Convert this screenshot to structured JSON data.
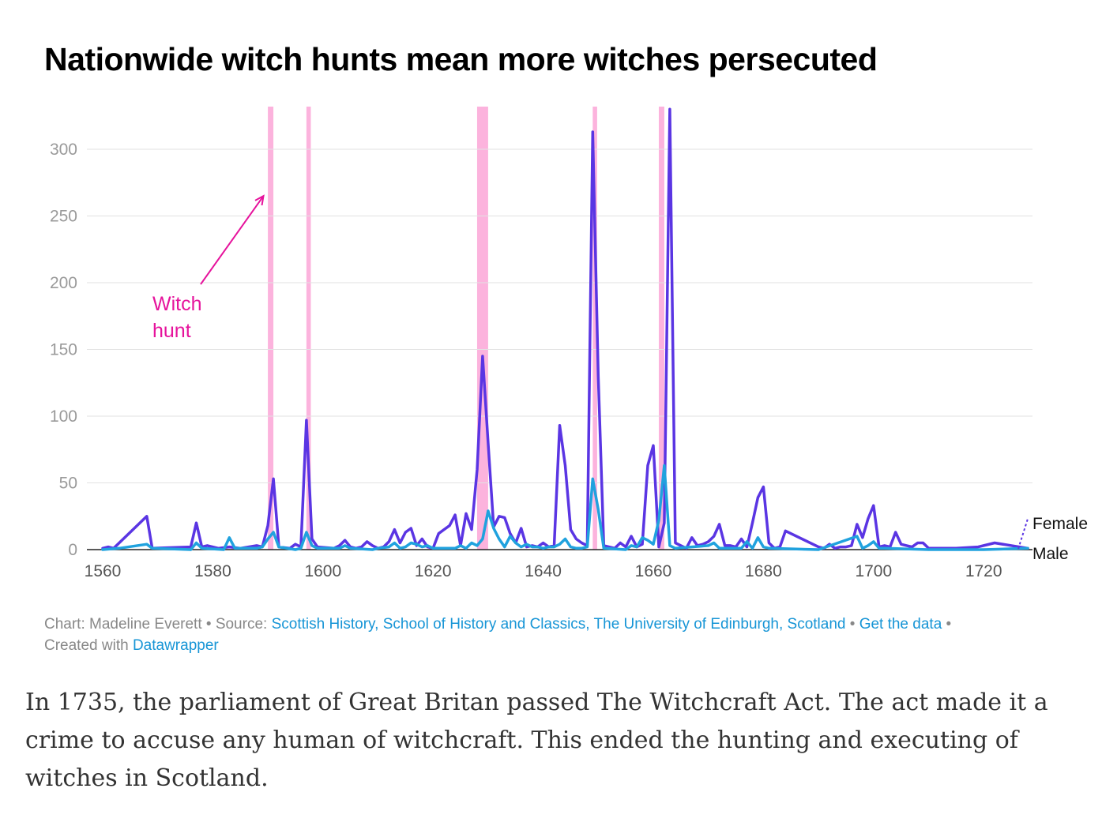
{
  "title": "Nationwide witch hunts mean more witches persecuted",
  "colors": {
    "female": "#5a35e3",
    "male": "#20a2de",
    "hunt_band": "#fcb3dd",
    "annotation": "#e6139c",
    "link": "#1795d6"
  },
  "chart_data": {
    "type": "line",
    "title": "Nationwide witch hunts mean more witches persecuted",
    "xlabel": "",
    "ylabel": "",
    "xlim": [
      1560,
      1730
    ],
    "ylim": [
      0,
      330
    ],
    "x_ticks": [
      "1560",
      "1580",
      "1600",
      "1620",
      "1640",
      "1660",
      "1680",
      "1700",
      "1720"
    ],
    "y_ticks": [
      "0",
      "50",
      "100",
      "150",
      "200",
      "250",
      "300"
    ],
    "grid": true,
    "legend": "direct labels at line ends (right)",
    "annotation": {
      "lines": [
        "Witch",
        "hunt"
      ],
      "points_to": 1590
    },
    "witch_hunt_periods": [
      [
        1590,
        1591
      ],
      [
        1597,
        1597.8
      ],
      [
        1628,
        1630
      ],
      [
        1649,
        1649.8
      ],
      [
        1661,
        1662
      ]
    ],
    "series": [
      {
        "name": "Female",
        "x": [
          1560,
          1561,
          1562,
          1568,
          1569,
          1576,
          1577,
          1578,
          1579,
          1581,
          1583,
          1585,
          1588,
          1589,
          1590,
          1591,
          1592,
          1594,
          1595,
          1596,
          1597,
          1598,
          1599,
          1602,
          1603,
          1604,
          1605,
          1606,
          1607,
          1608,
          1609,
          1610,
          1611,
          1612,
          1613,
          1614,
          1615,
          1616,
          1617,
          1618,
          1619,
          1620,
          1621,
          1622,
          1623,
          1624,
          1625,
          1626,
          1627,
          1628,
          1629,
          1630,
          1631,
          1632,
          1633,
          1634,
          1635,
          1636,
          1637,
          1638,
          1639,
          1640,
          1641,
          1642,
          1643,
          1644,
          1645,
          1646,
          1647,
          1648,
          1649,
          1650,
          1651,
          1653,
          1654,
          1655,
          1656,
          1657,
          1658,
          1659,
          1660,
          1661,
          1662,
          1663,
          1664,
          1665,
          1666,
          1667,
          1668,
          1669,
          1670,
          1671,
          1672,
          1673,
          1674,
          1675,
          1676,
          1677,
          1678,
          1679,
          1680,
          1681,
          1682,
          1683,
          1684,
          1690,
          1691,
          1692,
          1693,
          1694,
          1695,
          1696,
          1697,
          1698,
          1699,
          1700,
          1701,
          1702,
          1703,
          1704,
          1705,
          1706,
          1707,
          1708,
          1709,
          1710,
          1715,
          1719,
          1722,
          1728
        ],
        "values": [
          1,
          2,
          1,
          25,
          1,
          2,
          20,
          2,
          3,
          1,
          2,
          1,
          3,
          2,
          18,
          53,
          2,
          1,
          4,
          2,
          97,
          8,
          2,
          1,
          3,
          7,
          2,
          1,
          2,
          6,
          3,
          1,
          2,
          6,
          15,
          5,
          13,
          16,
          3,
          8,
          2,
          1,
          12,
          15,
          18,
          26,
          3,
          27,
          15,
          60,
          145,
          80,
          17,
          25,
          24,
          12,
          5,
          16,
          2,
          3,
          2,
          5,
          2,
          3,
          93,
          63,
          15,
          8,
          5,
          3,
          313,
          130,
          3,
          1,
          5,
          2,
          10,
          2,
          4,
          63,
          78,
          2,
          20,
          330,
          5,
          3,
          1,
          9,
          3,
          4,
          6,
          10,
          19,
          3,
          3,
          2,
          8,
          2,
          20,
          39,
          47,
          5,
          1,
          2,
          14,
          2,
          1,
          4,
          1,
          2,
          2,
          3,
          19,
          9,
          23,
          33,
          2,
          3,
          2,
          13,
          4,
          3,
          2,
          5,
          5,
          1,
          1,
          2,
          5,
          1
        ]
      },
      {
        "name": "Male",
        "x": [
          1560,
          1563,
          1568,
          1569,
          1576,
          1577,
          1578,
          1582,
          1583,
          1584,
          1588,
          1589,
          1590,
          1591,
          1592,
          1595,
          1596,
          1597,
          1598,
          1599,
          1603,
          1604,
          1605,
          1609,
          1610,
          1612,
          1613,
          1614,
          1615,
          1616,
          1617,
          1618,
          1619,
          1620,
          1624,
          1625,
          1626,
          1627,
          1628,
          1629,
          1630,
          1631,
          1632,
          1633,
          1634,
          1635,
          1636,
          1637,
          1638,
          1639,
          1640,
          1641,
          1642,
          1643,
          1644,
          1645,
          1646,
          1647,
          1648,
          1649,
          1650,
          1651,
          1655,
          1656,
          1657,
          1658,
          1659,
          1660,
          1661,
          1662,
          1663,
          1664,
          1670,
          1671,
          1672,
          1673,
          1676,
          1677,
          1678,
          1679,
          1680,
          1681,
          1690,
          1697,
          1698,
          1699,
          1700,
          1701,
          1702,
          1710,
          1720,
          1728
        ],
        "values": [
          0,
          1,
          4,
          1,
          0,
          5,
          1,
          0,
          9,
          1,
          1,
          2,
          8,
          13,
          2,
          0,
          1,
          13,
          3,
          1,
          1,
          3,
          1,
          0,
          1,
          2,
          5,
          1,
          2,
          5,
          4,
          2,
          3,
          1,
          1,
          3,
          1,
          5,
          3,
          8,
          29,
          16,
          8,
          2,
          10,
          5,
          2,
          4,
          2,
          2,
          1,
          2,
          2,
          4,
          8,
          2,
          1,
          1,
          2,
          53,
          30,
          1,
          0,
          3,
          2,
          9,
          7,
          4,
          22,
          63,
          3,
          1,
          3,
          5,
          1,
          1,
          1,
          6,
          1,
          9,
          2,
          1,
          0,
          10,
          1,
          3,
          6,
          1,
          1,
          0,
          0,
          1
        ]
      }
    ]
  },
  "footer": {
    "chart_by": "Chart: Madeline Everett",
    "sep": " • ",
    "source_label": "Source: ",
    "source_link": "Scottish History, School of History and Classics, The University of Edinburgh, Scotland",
    "get_data": "Get the data",
    "created_with": "Created with ",
    "datawrapper": "Datawrapper"
  },
  "article_text": "In 1735, the parliament of Great Britan passed The Witchcraft Act. The act made it a crime to accuse any human of witchcraft. This ended the hunting and executing of witches in Scotland."
}
